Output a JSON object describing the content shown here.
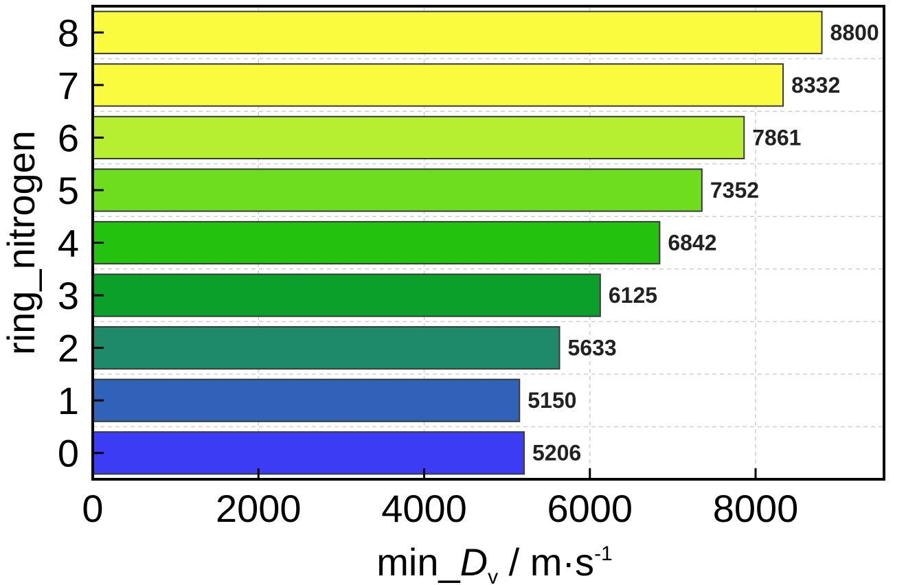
{
  "chart_data": {
    "type": "bar",
    "orientation": "horizontal",
    "categories": [
      "0",
      "1",
      "2",
      "3",
      "4",
      "5",
      "6",
      "7",
      "8"
    ],
    "values": [
      5206,
      5150,
      5633,
      6125,
      6842,
      7352,
      7861,
      8332,
      8800
    ],
    "data_labels": [
      "5206",
      "5150",
      "5633",
      "6125",
      "6842",
      "7352",
      "7861",
      "8332",
      "8800"
    ],
    "colors": [
      "#3c3cf5",
      "#2f62b8",
      "#1e8a6a",
      "#0aa02a",
      "#22c20e",
      "#6ddd1e",
      "#b6ee32",
      "#fafa3e",
      "#fafa3e"
    ],
    "x_ticks": [
      "0",
      "2000",
      "4000",
      "6000",
      "8000"
    ],
    "x_tick_values": [
      0,
      2000,
      4000,
      6000,
      8000
    ],
    "xlim": [
      0,
      9550
    ],
    "xlabel": {
      "prefix": "min_",
      "italic": "D",
      "subscript": "v",
      "suffix": " / m·s",
      "superscript": "-1"
    },
    "ylabel": "ring_nitrogen",
    "grid": true
  }
}
